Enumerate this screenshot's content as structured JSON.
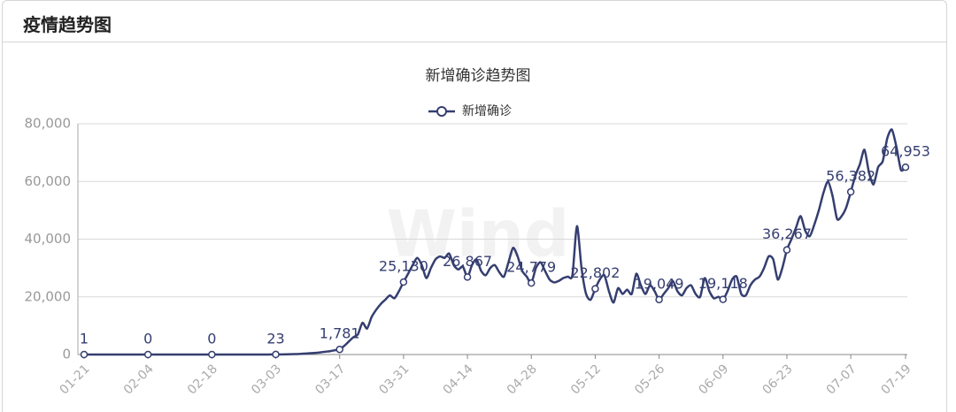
{
  "header": {
    "title": "疫情趋势图"
  },
  "chart_data": {
    "type": "line",
    "title": "新增确诊趋势图",
    "watermark": "Wind",
    "categories": [
      "01-21",
      null,
      null,
      null,
      null,
      null,
      null,
      null,
      null,
      null,
      null,
      null,
      null,
      null,
      "02-04",
      null,
      null,
      null,
      null,
      null,
      null,
      null,
      null,
      null,
      null,
      null,
      null,
      null,
      "02-18",
      null,
      null,
      null,
      null,
      null,
      null,
      null,
      null,
      null,
      null,
      null,
      null,
      null,
      "03-03",
      null,
      null,
      null,
      null,
      null,
      null,
      null,
      null,
      null,
      null,
      null,
      null,
      null,
      "03-17",
      null,
      null,
      null,
      null,
      null,
      null,
      null,
      null,
      null,
      null,
      null,
      null,
      null,
      "03-31",
      null,
      null,
      null,
      null,
      null,
      null,
      null,
      null,
      null,
      null,
      null,
      null,
      null,
      "04-14",
      null,
      null,
      null,
      null,
      null,
      null,
      null,
      null,
      null,
      null,
      null,
      null,
      null,
      "04-28",
      null,
      null,
      null,
      null,
      null,
      null,
      null,
      null,
      null,
      null,
      null,
      null,
      null,
      "05-12",
      null,
      null,
      null,
      null,
      null,
      null,
      null,
      null,
      null,
      null,
      null,
      null,
      null,
      "05-26",
      null,
      null,
      null,
      null,
      null,
      null,
      null,
      null,
      null,
      null,
      null,
      null,
      null,
      "06-09",
      null,
      null,
      null,
      null,
      null,
      null,
      null,
      null,
      null,
      null,
      null,
      null,
      null,
      "06-23",
      null,
      null,
      null,
      null,
      null,
      null,
      null,
      null,
      null,
      null,
      null,
      null,
      null,
      "07-07",
      null,
      null,
      null,
      null,
      null,
      null,
      null,
      null,
      null,
      null,
      null,
      "07-19"
    ],
    "series": [
      {
        "name": "新增确诊",
        "color": "#353e70",
        "values": [
          1,
          0,
          0,
          0,
          0,
          0,
          0,
          0,
          0,
          0,
          0,
          0,
          0,
          0,
          0,
          0,
          0,
          0,
          0,
          0,
          0,
          0,
          0,
          0,
          0,
          0,
          0,
          0,
          0,
          0,
          0,
          0,
          0,
          0,
          0,
          0,
          0,
          0,
          5,
          10,
          15,
          20,
          23,
          40,
          60,
          100,
          150,
          200,
          300,
          400,
          500,
          600,
          800,
          1000,
          1200,
          1500,
          1781,
          3000,
          4500,
          6000,
          7000,
          11000,
          9000,
          13000,
          15500,
          17500,
          19000,
          20500,
          19500,
          22000,
          25130,
          28000,
          31000,
          33500,
          31000,
          26500,
          30000,
          33000,
          34000,
          33500,
          35000,
          31000,
          29500,
          30500,
          26867,
          31000,
          33000,
          29000,
          27500,
          30000,
          31000,
          28500,
          27000,
          32000,
          37000,
          34000,
          29000,
          27000,
          24779,
          30000,
          32000,
          29000,
          26000,
          25000,
          25500,
          26500,
          27000,
          27500,
          44500,
          30000,
          21000,
          19000,
          22802,
          26000,
          27500,
          22000,
          18000,
          23000,
          21000,
          22500,
          21000,
          28000,
          24000,
          21000,
          24000,
          22000,
          19049,
          21000,
          23000,
          25500,
          22000,
          20500,
          23000,
          24000,
          21000,
          20000,
          26500,
          22000,
          19500,
          20000,
          19118,
          22000,
          26000,
          27000,
          21000,
          20500,
          24000,
          26000,
          27000,
          30000,
          34000,
          33000,
          26000,
          30000,
          36267,
          40000,
          44000,
          48000,
          43000,
          41000,
          45000,
          50000,
          56000,
          60000,
          55000,
          47000,
          48000,
          51000,
          56382,
          62000,
          66000,
          71000,
          63000,
          59000,
          65000,
          67000,
          75000,
          78000,
          72000,
          64000,
          64953
        ],
        "value_labels": [
          "1",
          null,
          null,
          null,
          null,
          null,
          null,
          null,
          null,
          null,
          null,
          null,
          null,
          null,
          "0",
          null,
          null,
          null,
          null,
          null,
          null,
          null,
          null,
          null,
          null,
          null,
          null,
          null,
          "0",
          null,
          null,
          null,
          null,
          null,
          null,
          null,
          null,
          null,
          null,
          null,
          null,
          null,
          "23",
          null,
          null,
          null,
          null,
          null,
          null,
          null,
          null,
          null,
          null,
          null,
          null,
          null,
          "1,781",
          null,
          null,
          null,
          null,
          null,
          null,
          null,
          null,
          null,
          null,
          null,
          null,
          null,
          "25,130",
          null,
          null,
          null,
          null,
          null,
          null,
          null,
          null,
          null,
          null,
          null,
          null,
          null,
          "26,867",
          null,
          null,
          null,
          null,
          null,
          null,
          null,
          null,
          null,
          null,
          null,
          null,
          null,
          "24,779",
          null,
          null,
          null,
          null,
          null,
          null,
          null,
          null,
          null,
          null,
          null,
          null,
          null,
          "22,802",
          null,
          null,
          null,
          null,
          null,
          null,
          null,
          null,
          null,
          null,
          null,
          null,
          null,
          "19,049",
          null,
          null,
          null,
          null,
          null,
          null,
          null,
          null,
          null,
          null,
          null,
          null,
          null,
          "19,118",
          null,
          null,
          null,
          null,
          null,
          null,
          null,
          null,
          null,
          null,
          null,
          null,
          null,
          "36,267",
          null,
          null,
          null,
          null,
          null,
          null,
          null,
          null,
          null,
          null,
          null,
          null,
          null,
          "56,382",
          null,
          null,
          null,
          null,
          null,
          null,
          null,
          null,
          null,
          null,
          null,
          "64,953"
        ]
      }
    ],
    "ylim": [
      0,
      80000
    ],
    "yticks": [
      {
        "value": 0,
        "label": "0"
      },
      {
        "value": 20000,
        "label": "20,000"
      },
      {
        "value": 40000,
        "label": "40,000"
      },
      {
        "value": 60000,
        "label": "60,000"
      },
      {
        "value": 80000,
        "label": "80,000"
      }
    ],
    "grid": true,
    "legend": "top"
  }
}
